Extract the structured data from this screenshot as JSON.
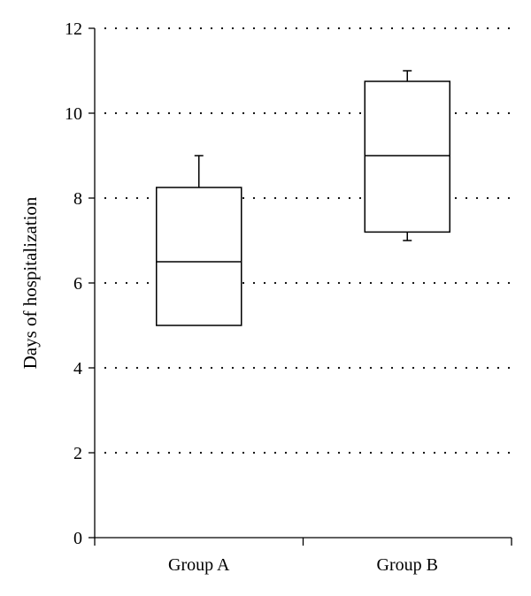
{
  "chart_data": {
    "type": "box",
    "title": "",
    "xlabel": "",
    "ylabel": "Days of hospitalization",
    "ylim": [
      0,
      12
    ],
    "yticks": [
      0,
      2,
      4,
      6,
      8,
      10,
      12
    ],
    "ytick_labels": [
      "0",
      "2",
      "4",
      "6",
      "8",
      "10",
      "12"
    ],
    "grid": "horizontal-dotted",
    "categories": [
      "Group A",
      "Group B"
    ],
    "boxes": [
      {
        "category": "Group A",
        "whisker_low": 5.0,
        "q1": 5.0,
        "median": 6.5,
        "q3": 8.25,
        "whisker_high": 9.0
      },
      {
        "category": "Group B",
        "whisker_low": 7.0,
        "q1": 7.2,
        "median": 9.0,
        "q3": 10.75,
        "whisker_high": 11.0
      }
    ],
    "colors": {
      "box_fill": "#ffffff",
      "stroke": "#000000",
      "grid": "#000000"
    }
  }
}
